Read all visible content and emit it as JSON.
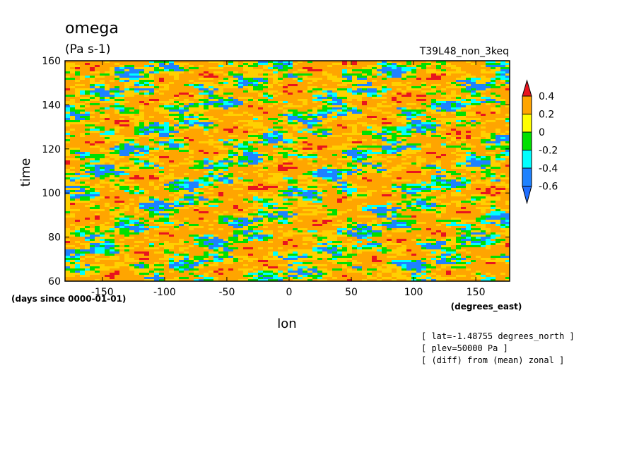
{
  "chart_data": {
    "type": "heatmap",
    "title": "omega",
    "units": "(Pa s-1)",
    "run_label": "T39L48_non_3keq",
    "xlabel": "lon",
    "x_units": "(degrees_east)",
    "ylabel": "time",
    "y_units": "(days since 0000-01-01)",
    "xlim": [
      -180,
      177.19
    ],
    "ylim": [
      60,
      160
    ],
    "x_ticks": [
      "-150",
      "-100",
      "-50",
      "0",
      "50",
      "100",
      "150"
    ],
    "y_ticks": [
      "60",
      "80",
      "100",
      "120",
      "140",
      "160"
    ],
    "colorbar": {
      "levels": [
        "0.4",
        "0.2",
        "0",
        "-0.2",
        "-0.4",
        "-0.6"
      ],
      "colors": [
        "#e8141e",
        "#ffa500",
        "#ffff00",
        "#00e000",
        "#00ffff",
        "#1e82ff",
        "#1e6eff"
      ]
    },
    "annotations": [
      "[ lat=-1.48755 degrees_north ]",
      "[ plev=50000 Pa ]",
      "[ (diff) from (mean) zonal ]"
    ]
  }
}
